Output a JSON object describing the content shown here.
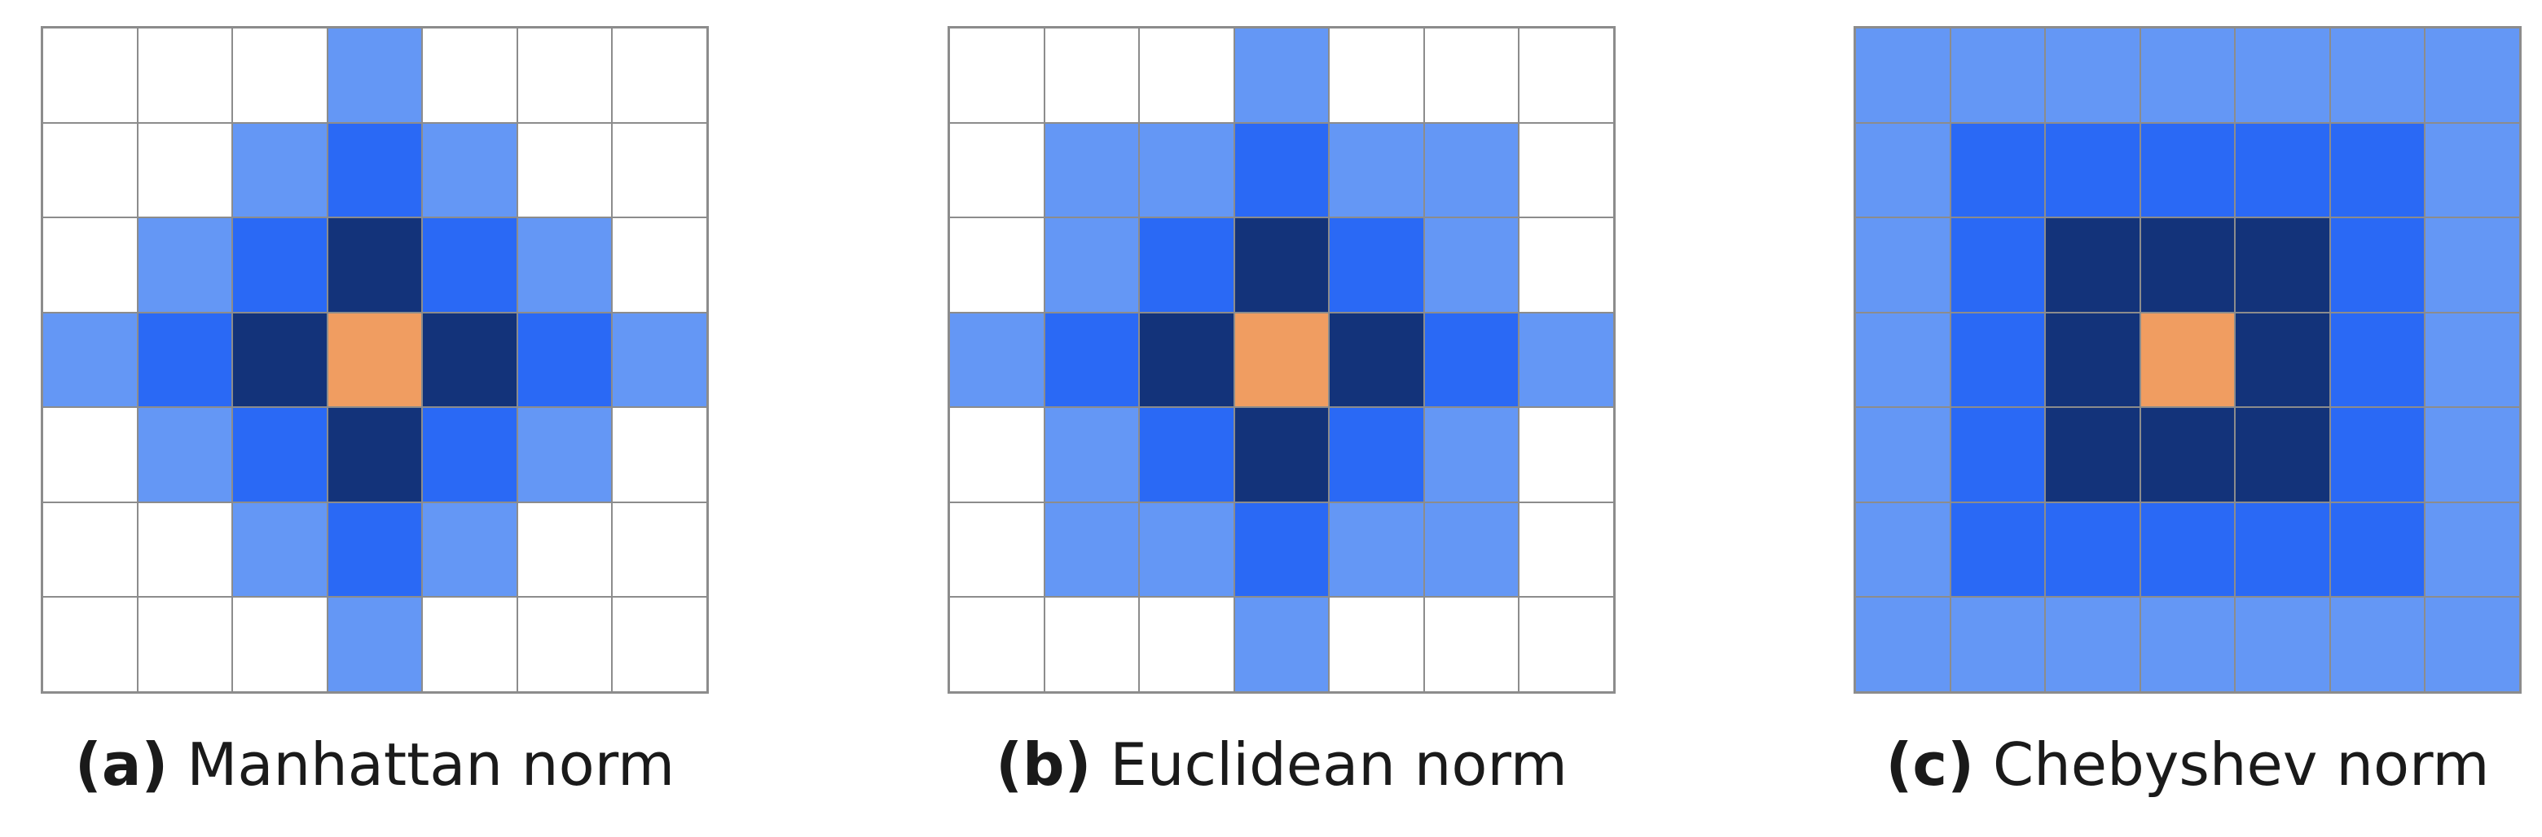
{
  "colors": {
    "empty": "#ffffff",
    "light": "#6497f5",
    "medium": "#2a69f5",
    "dark": "#13337a",
    "center": "#f09d61",
    "gridline": "#8c8c8c"
  },
  "legend_values": {
    "0": "empty",
    "1": "light",
    "2": "medium",
    "3": "dark",
    "9": "center"
  },
  "panels": [
    {
      "tag": "(a)",
      "label": "Manhattan norm",
      "cells": [
        [
          0,
          0,
          0,
          1,
          0,
          0,
          0
        ],
        [
          0,
          0,
          1,
          2,
          1,
          0,
          0
        ],
        [
          0,
          1,
          2,
          3,
          2,
          1,
          0
        ],
        [
          1,
          2,
          3,
          9,
          3,
          2,
          1
        ],
        [
          0,
          1,
          2,
          3,
          2,
          1,
          0
        ],
        [
          0,
          0,
          1,
          2,
          1,
          0,
          0
        ],
        [
          0,
          0,
          0,
          1,
          0,
          0,
          0
        ]
      ]
    },
    {
      "tag": "(b)",
      "label": "Euclidean norm",
      "cells": [
        [
          0,
          0,
          0,
          1,
          0,
          0,
          0
        ],
        [
          0,
          1,
          1,
          2,
          1,
          1,
          0
        ],
        [
          0,
          1,
          2,
          3,
          2,
          1,
          0
        ],
        [
          1,
          2,
          3,
          9,
          3,
          2,
          1
        ],
        [
          0,
          1,
          2,
          3,
          2,
          1,
          0
        ],
        [
          0,
          1,
          1,
          2,
          1,
          1,
          0
        ],
        [
          0,
          0,
          0,
          1,
          0,
          0,
          0
        ]
      ]
    },
    {
      "tag": "(c)",
      "label": "Chebyshev norm",
      "cells": [
        [
          1,
          1,
          1,
          1,
          1,
          1,
          1
        ],
        [
          1,
          2,
          2,
          2,
          2,
          2,
          1
        ],
        [
          1,
          2,
          3,
          3,
          3,
          2,
          1
        ],
        [
          1,
          2,
          3,
          9,
          3,
          2,
          1
        ],
        [
          1,
          2,
          3,
          3,
          3,
          2,
          1
        ],
        [
          1,
          2,
          2,
          2,
          2,
          2,
          1
        ],
        [
          1,
          1,
          1,
          1,
          1,
          1,
          1
        ]
      ]
    }
  ]
}
